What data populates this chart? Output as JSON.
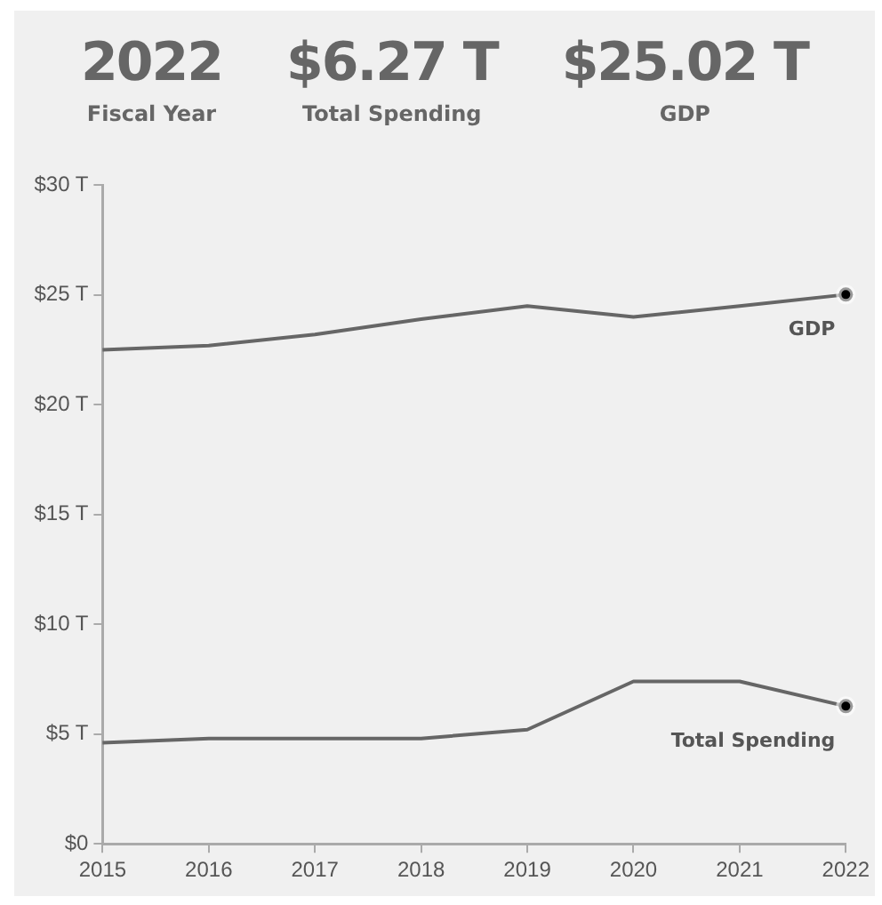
{
  "chart_data": {
    "type": "line",
    "annotations": [
      "2022",
      "Fiscal Year",
      "$6.27 T",
      "Total Spending",
      "$25.02 T",
      "GDP"
    ],
    "x": [
      2015,
      2016,
      2017,
      2018,
      2019,
      2020,
      2021,
      2022
    ],
    "series": [
      {
        "name": "GDP",
        "color": "#666666",
        "values": [
          22.5,
          22.7,
          23.2,
          23.9,
          24.5,
          24.0,
          24.5,
          25.02
        ]
      },
      {
        "name": "Total Spending",
        "color": "#666666",
        "values": [
          4.6,
          4.8,
          4.8,
          4.8,
          5.2,
          7.4,
          7.4,
          6.27
        ]
      }
    ],
    "xlim": [
      2015,
      2022
    ],
    "xticks": [
      2015,
      2016,
      2017,
      2018,
      2019,
      2020,
      2021,
      2022
    ],
    "ylim": [
      0,
      30
    ],
    "yticks": [
      {
        "value": 0,
        "label": "$0"
      },
      {
        "value": 5,
        "label": "$5 T"
      },
      {
        "value": 10,
        "label": "$10 T"
      },
      {
        "value": 15,
        "label": "$15 T"
      },
      {
        "value": 20,
        "label": "$20 T"
      },
      {
        "value": 25,
        "label": "$25 T"
      },
      {
        "value": 30,
        "label": "$30 T"
      }
    ],
    "grid": false,
    "legend": false
  }
}
